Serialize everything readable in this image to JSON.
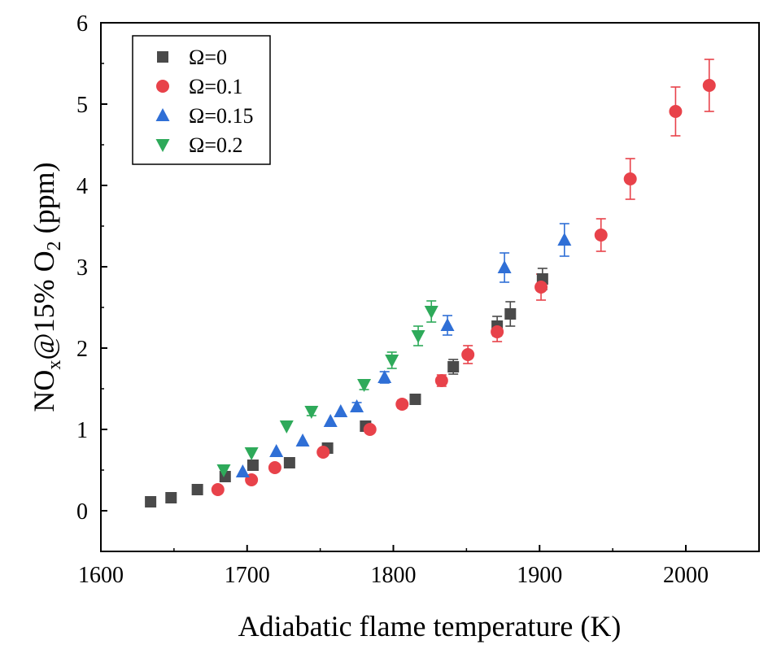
{
  "chart_data": {
    "type": "scatter",
    "title": "",
    "xlabel": "Adiabatic flame temperature (K)",
    "ylabel": {
      "main": "NO",
      "sub1": "x",
      "mid": "@15% O",
      "sub2": "2",
      "tail": " (ppm)"
    },
    "xlim": [
      1600,
      2050
    ],
    "ylim": [
      -0.5,
      6
    ],
    "xticks": [
      "1600",
      "1700",
      "1800",
      "1900",
      "2000"
    ],
    "yticks": [
      "0",
      "1",
      "2",
      "3",
      "4",
      "5",
      "6"
    ],
    "grid": false,
    "legend_position": "top-left",
    "series": [
      {
        "name": "Ω=0",
        "marker": "square",
        "color": "#4a4a4a",
        "points": [
          {
            "x": 1634,
            "y": 0.11,
            "err": 0.0
          },
          {
            "x": 1648,
            "y": 0.16,
            "err": 0.0
          },
          {
            "x": 1666,
            "y": 0.26,
            "err": 0.0
          },
          {
            "x": 1685,
            "y": 0.42,
            "err": 0.0
          },
          {
            "x": 1704,
            "y": 0.56,
            "err": 0.0
          },
          {
            "x": 1729,
            "y": 0.59,
            "err": 0.0
          },
          {
            "x": 1755,
            "y": 0.77,
            "err": 0.0
          },
          {
            "x": 1781,
            "y": 1.04,
            "err": 0.0
          },
          {
            "x": 1815,
            "y": 1.37,
            "err": 0.06
          },
          {
            "x": 1841,
            "y": 1.77,
            "err": 0.09
          },
          {
            "x": 1871,
            "y": 2.27,
            "err": 0.12
          },
          {
            "x": 1880,
            "y": 2.42,
            "err": 0.15
          },
          {
            "x": 1902,
            "y": 2.85,
            "err": 0.13
          }
        ]
      },
      {
        "name": "Ω=0.1",
        "marker": "circle",
        "color": "#e8424a",
        "points": [
          {
            "x": 1680,
            "y": 0.26,
            "err": 0.0
          },
          {
            "x": 1703,
            "y": 0.38,
            "err": 0.0
          },
          {
            "x": 1719,
            "y": 0.53,
            "err": 0.0
          },
          {
            "x": 1752,
            "y": 0.72,
            "err": 0.0
          },
          {
            "x": 1784,
            "y": 1.0,
            "err": 0.0
          },
          {
            "x": 1806,
            "y": 1.31,
            "err": 0.05
          },
          {
            "x": 1833,
            "y": 1.6,
            "err": 0.07
          },
          {
            "x": 1851,
            "y": 1.92,
            "err": 0.11
          },
          {
            "x": 1871,
            "y": 2.2,
            "err": 0.12
          },
          {
            "x": 1901,
            "y": 2.75,
            "err": 0.16
          },
          {
            "x": 1942,
            "y": 3.39,
            "err": 0.2
          },
          {
            "x": 1962,
            "y": 4.08,
            "err": 0.25
          },
          {
            "x": 1993,
            "y": 4.91,
            "err": 0.3
          },
          {
            "x": 2016,
            "y": 5.23,
            "err": 0.32
          }
        ]
      },
      {
        "name": "Ω=0.15",
        "marker": "triangle-up",
        "color": "#2f6fd6",
        "points": [
          {
            "x": 1697,
            "y": 0.48,
            "err": 0.0
          },
          {
            "x": 1720,
            "y": 0.73,
            "err": 0.0
          },
          {
            "x": 1738,
            "y": 0.86,
            "err": 0.0
          },
          {
            "x": 1757,
            "y": 1.1,
            "err": 0.0
          },
          {
            "x": 1764,
            "y": 1.22,
            "err": 0.0
          },
          {
            "x": 1775,
            "y": 1.28,
            "err": 0.05
          },
          {
            "x": 1794,
            "y": 1.64,
            "err": 0.07
          },
          {
            "x": 1837,
            "y": 2.28,
            "err": 0.12
          },
          {
            "x": 1876,
            "y": 2.99,
            "err": 0.18
          },
          {
            "x": 1917,
            "y": 3.33,
            "err": 0.2
          }
        ]
      },
      {
        "name": "Ω=0.2",
        "marker": "triangle-down",
        "color": "#2eaa5a",
        "points": [
          {
            "x": 1684,
            "y": 0.5,
            "err": 0.0
          },
          {
            "x": 1703,
            "y": 0.71,
            "err": 0.0
          },
          {
            "x": 1727,
            "y": 1.04,
            "err": 0.0
          },
          {
            "x": 1744,
            "y": 1.22,
            "err": 0.05
          },
          {
            "x": 1780,
            "y": 1.55,
            "err": 0.06
          },
          {
            "x": 1799,
            "y": 1.85,
            "err": 0.1
          },
          {
            "x": 1817,
            "y": 2.15,
            "err": 0.12
          },
          {
            "x": 1826,
            "y": 2.45,
            "err": 0.13
          }
        ]
      }
    ]
  }
}
